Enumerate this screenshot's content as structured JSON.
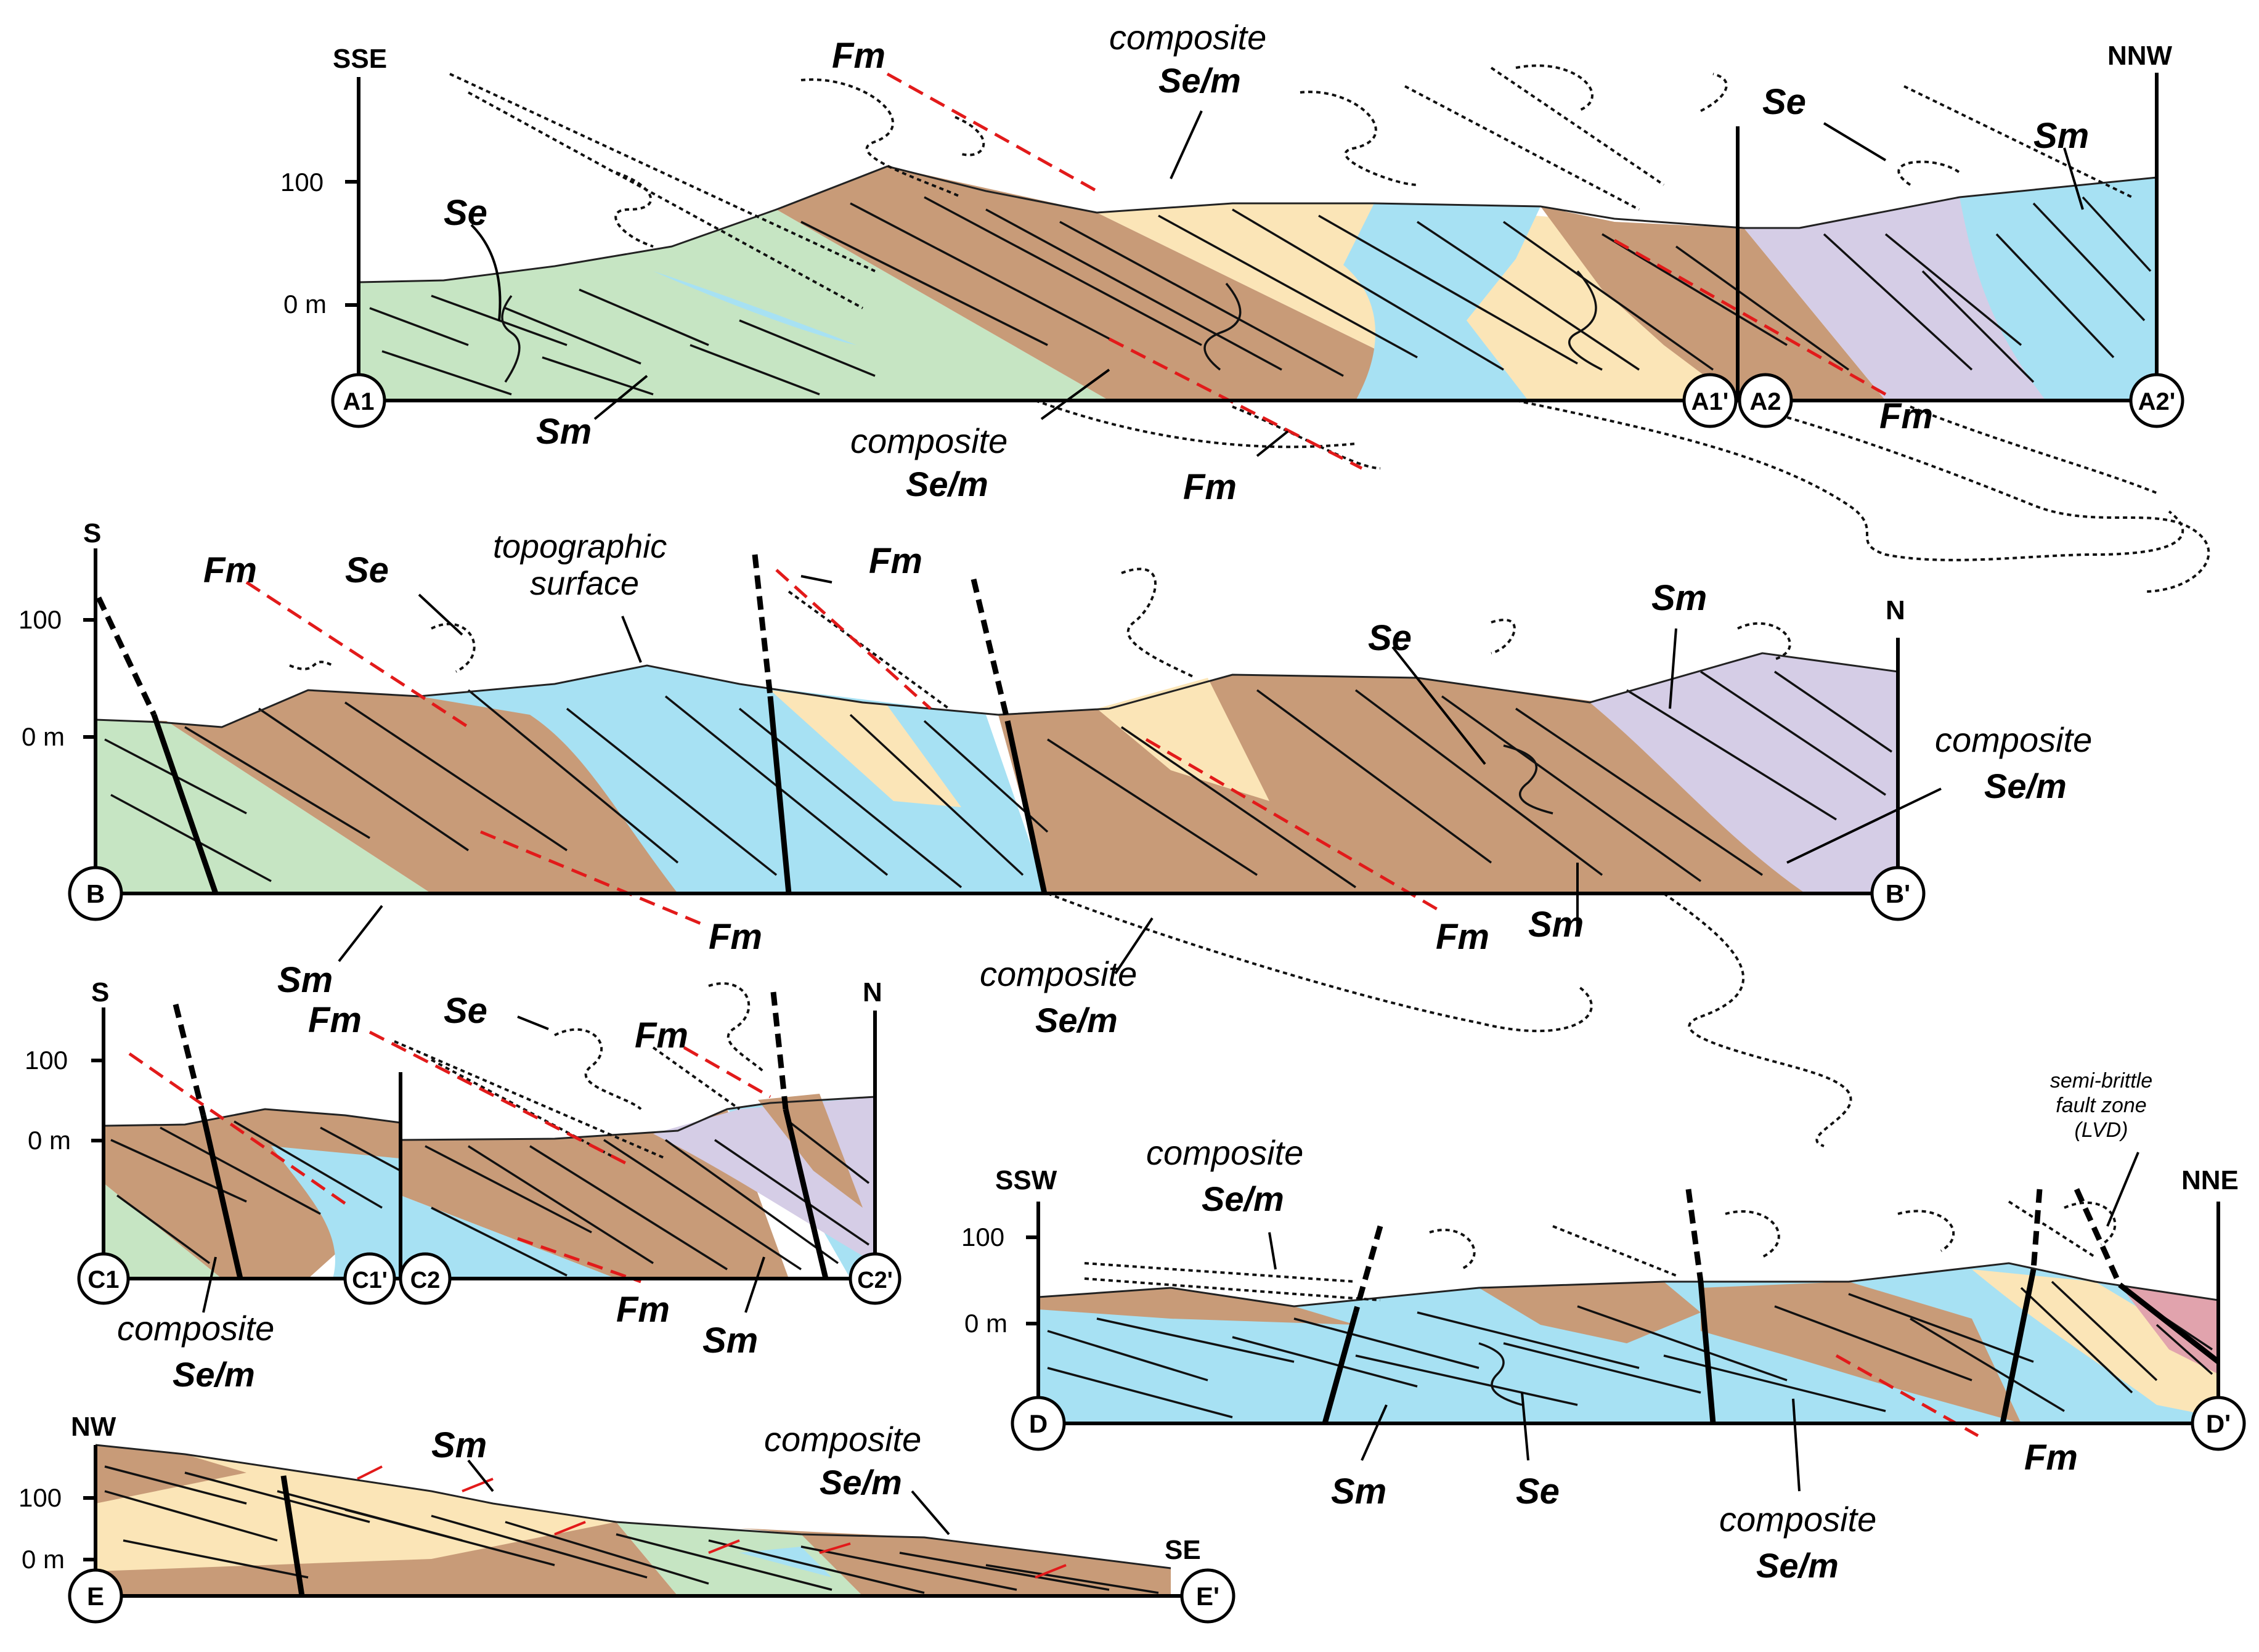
{
  "sections": {
    "A": {
      "dir_left": "SSE",
      "dir_right": "NNW",
      "tick_100": "100",
      "tick_0": "0 m",
      "ends": [
        "A1",
        "A1'",
        "A2",
        "A2'"
      ],
      "labels": {
        "se": "Se",
        "sm": "Sm",
        "fm": "Fm",
        "composite": "composite",
        "sem": "Se/m"
      }
    },
    "B": {
      "dir_left": "S",
      "dir_right": "N",
      "tick_100": "100",
      "tick_0": "0 m",
      "ends": [
        "B",
        "B'"
      ],
      "topo_line1": "topographic",
      "topo_line2": "surface",
      "labels": {
        "se": "Se",
        "sm": "Sm",
        "fm": "Fm",
        "composite": "composite",
        "sem": "Se/m"
      }
    },
    "C": {
      "dir_left": "S",
      "dir_right": "N",
      "tick_100": "100",
      "tick_0": "0 m",
      "ends": [
        "C1",
        "C1'",
        "C2",
        "C2'"
      ],
      "labels": {
        "se": "Se",
        "sm": "Sm",
        "fm": "Fm",
        "composite": "composite",
        "sem": "Se/m"
      }
    },
    "D": {
      "dir_left": "SSW",
      "dir_right": "NNE",
      "tick_100": "100",
      "tick_0": "0 m",
      "ends": [
        "D",
        "D'"
      ],
      "fault_zone": [
        "semi-brittle",
        "fault zone",
        "(LVD)"
      ],
      "labels": {
        "se": "Se",
        "sm": "Sm",
        "fm": "Fm",
        "composite": "composite",
        "sem": "Se/m"
      }
    },
    "E": {
      "dir_left": "NW",
      "dir_right": "SE",
      "tick_100": "100",
      "tick_0": "0 m",
      "ends": [
        "E",
        "E'"
      ],
      "labels": {
        "sm": "Sm",
        "composite": "composite",
        "sem": "Se/m"
      }
    }
  },
  "colors": {
    "green": "#c6e5c3",
    "brown": "#c89b78",
    "yellow": "#fbe5b7",
    "blue": "#a7e1f3",
    "purple": "#d5cde6",
    "pink": "#e1a3ad",
    "red": "#e21a1a"
  }
}
